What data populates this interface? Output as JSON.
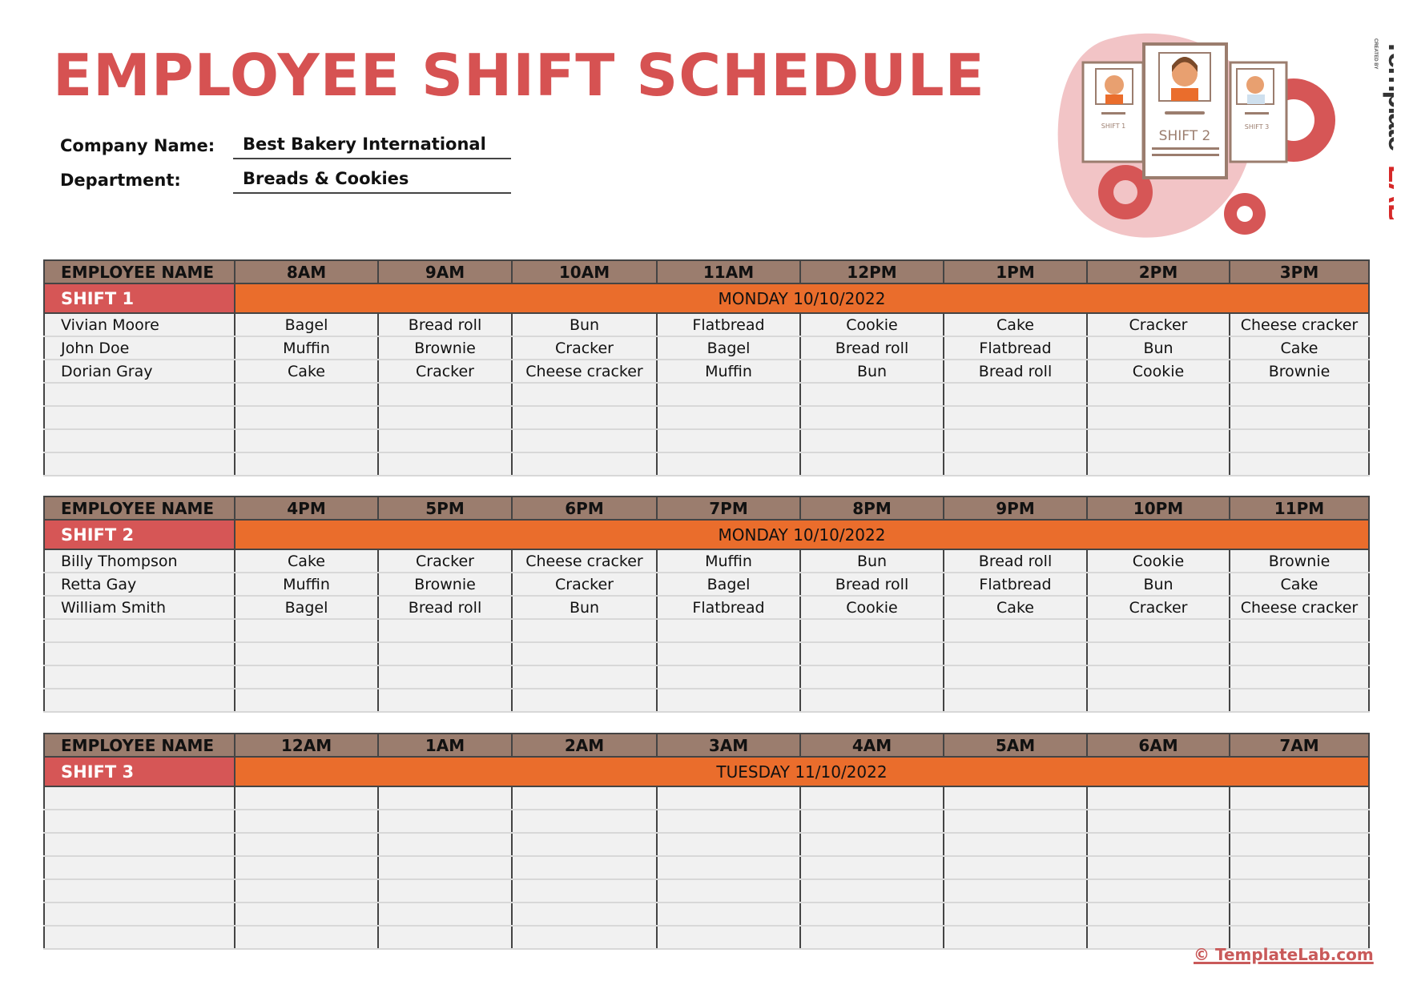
{
  "title": "EMPLOYEE SHIFT SCHEDULE",
  "company": {
    "label": "Company Name:",
    "value": "Best Bakery International"
  },
  "department": {
    "label": "Department:",
    "value": "Breads & Cookies"
  },
  "illustration": {
    "cards": [
      "SHIFT 1",
      "SHIFT 2",
      "SHIFT 3"
    ]
  },
  "brand": {
    "created_by": "CREATED BY",
    "name_part1": "Template",
    "name_part2": "LAB"
  },
  "colors": {
    "title": "#d65252",
    "header": "#9b7d6e",
    "shift": "#d65656",
    "date_bar": "#ea6d2c",
    "cell": "#f1f1f1"
  },
  "shifts": [
    {
      "name": "SHIFT 1",
      "date": "MONDAY 10/10/2022",
      "headers": [
        "EMPLOYEE NAME",
        "8AM",
        "9AM",
        "10AM",
        "11AM",
        "12PM",
        "1PM",
        "2PM",
        "3PM"
      ],
      "rows": [
        [
          "Vivian Moore",
          "Bagel",
          "Bread roll",
          "Bun",
          "Flatbread",
          "Cookie",
          "Cake",
          "Cracker",
          "Cheese cracker"
        ],
        [
          "John Doe",
          "Muffin",
          "Brownie",
          "Cracker",
          "Bagel",
          "Bread roll",
          "Flatbread",
          "Bun",
          "Cake"
        ],
        [
          "Dorian Gray",
          "Cake",
          "Cracker",
          "Cheese cracker",
          "Muffin",
          "Bun",
          "Bread roll",
          "Cookie",
          "Brownie"
        ],
        [
          "",
          "",
          "",
          "",
          "",
          "",
          "",
          "",
          ""
        ],
        [
          "",
          "",
          "",
          "",
          "",
          "",
          "",
          "",
          ""
        ],
        [
          "",
          "",
          "",
          "",
          "",
          "",
          "",
          "",
          ""
        ],
        [
          "",
          "",
          "",
          "",
          "",
          "",
          "",
          "",
          ""
        ]
      ]
    },
    {
      "name": "SHIFT 2",
      "date": "MONDAY 10/10/2022",
      "headers": [
        "EMPLOYEE NAME",
        "4PM",
        "5PM",
        "6PM",
        "7PM",
        "8PM",
        "9PM",
        "10PM",
        "11PM"
      ],
      "rows": [
        [
          "Billy Thompson",
          "Cake",
          "Cracker",
          "Cheese cracker",
          "Muffin",
          "Bun",
          "Bread roll",
          "Cookie",
          "Brownie"
        ],
        [
          "Retta Gay",
          "Muffin",
          "Brownie",
          "Cracker",
          "Bagel",
          "Bread roll",
          "Flatbread",
          "Bun",
          "Cake"
        ],
        [
          "William Smith",
          "Bagel",
          "Bread roll",
          "Bun",
          "Flatbread",
          "Cookie",
          "Cake",
          "Cracker",
          "Cheese cracker"
        ],
        [
          "",
          "",
          "",
          "",
          "",
          "",
          "",
          "",
          ""
        ],
        [
          "",
          "",
          "",
          "",
          "",
          "",
          "",
          "",
          ""
        ],
        [
          "",
          "",
          "",
          "",
          "",
          "",
          "",
          "",
          ""
        ],
        [
          "",
          "",
          "",
          "",
          "",
          "",
          "",
          "",
          ""
        ]
      ]
    },
    {
      "name": "SHIFT 3",
      "date": "TUESDAY 11/10/2022",
      "headers": [
        "EMPLOYEE NAME",
        "12AM",
        "1AM",
        "2AM",
        "3AM",
        "4AM",
        "5AM",
        "6AM",
        "7AM"
      ],
      "rows": [
        [
          "",
          "",
          "",
          "",
          "",
          "",
          "",
          "",
          ""
        ],
        [
          "",
          "",
          "",
          "",
          "",
          "",
          "",
          "",
          ""
        ],
        [
          "",
          "",
          "",
          "",
          "",
          "",
          "",
          "",
          ""
        ],
        [
          "",
          "",
          "",
          "",
          "",
          "",
          "",
          "",
          ""
        ],
        [
          "",
          "",
          "",
          "",
          "",
          "",
          "",
          "",
          ""
        ],
        [
          "",
          "",
          "",
          "",
          "",
          "",
          "",
          "",
          ""
        ],
        [
          "",
          "",
          "",
          "",
          "",
          "",
          "",
          "",
          ""
        ]
      ]
    }
  ],
  "footer": "© TemplateLab.com"
}
